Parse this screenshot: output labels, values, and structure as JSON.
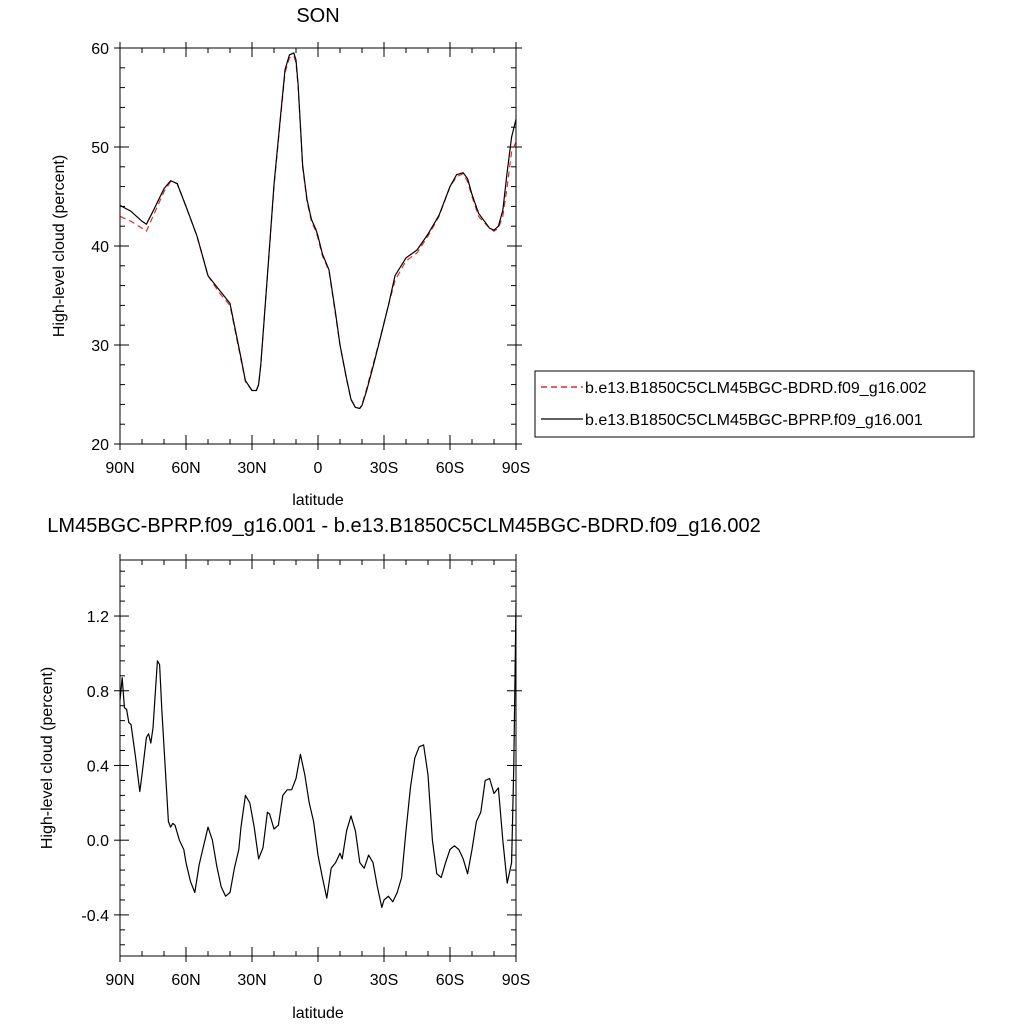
{
  "chart_data": [
    {
      "type": "line",
      "title": "SON",
      "xlabel": "latitude",
      "ylabel": "High-level cloud (percent)",
      "x_ticks": [
        "90N",
        "60N",
        "30N",
        "0",
        "30S",
        "60S",
        "90S"
      ],
      "xlim": [
        90,
        -90
      ],
      "ylim": [
        20,
        60
      ],
      "y_ticks": [
        "20",
        "30",
        "40",
        "50",
        "60"
      ],
      "grid": false,
      "legend_placement": "right",
      "series": [
        {
          "name": "b.e13.B1850C5CLM45BGC-BDRD.f09_g16.002",
          "color": "#e8262d",
          "dash": "dashed",
          "x": [
            90,
            85,
            80,
            78,
            75,
            70,
            67,
            64,
            60,
            55,
            50,
            45,
            40,
            35,
            33,
            30,
            28,
            27,
            26,
            24,
            22,
            20,
            17,
            15,
            13,
            11,
            10,
            9,
            8,
            7,
            5,
            3,
            1,
            0,
            -2,
            -5,
            -8,
            -10,
            -13,
            -15,
            -17,
            -19,
            -20,
            -22,
            -25,
            -28,
            -32,
            -35,
            -40,
            -45,
            -50,
            -55,
            -60,
            -63,
            -66,
            -68,
            -70,
            -73,
            -75,
            -78,
            -80,
            -82,
            -84,
            -86,
            -88,
            -90
          ],
          "values": [
            43.0,
            42.5,
            41.8,
            41.5,
            43.0,
            45.5,
            46.5,
            46.3,
            44.0,
            41.0,
            37.0,
            35.3,
            34.0,
            28.5,
            26.3,
            25.4,
            25.4,
            26.0,
            28.0,
            34.0,
            40.0,
            46.0,
            53.0,
            57.5,
            59.0,
            59.2,
            58.5,
            56.0,
            52.0,
            48.0,
            44.5,
            42.5,
            41.5,
            40.8,
            39.0,
            37.5,
            33.0,
            30.0,
            26.5,
            24.5,
            23.7,
            23.6,
            24.0,
            25.5,
            28.0,
            30.5,
            34.0,
            36.5,
            38.5,
            39.3,
            41.0,
            43.0,
            46.0,
            47.0,
            47.3,
            46.5,
            45.0,
            43.0,
            42.5,
            41.8,
            41.5,
            41.8,
            43.0,
            46.0,
            49.5,
            50.5
          ]
        },
        {
          "name": "b.e13.B1850C5CLM45BGC-BPRP.f09_g16.001",
          "color": "#000000",
          "dash": "solid",
          "x": [
            90,
            85,
            80,
            78,
            75,
            70,
            67,
            64,
            60,
            55,
            50,
            45,
            40,
            35,
            33,
            30,
            28,
            27,
            26,
            24,
            22,
            20,
            17,
            15,
            13,
            11,
            10,
            9,
            8,
            7,
            5,
            3,
            1,
            0,
            -2,
            -5,
            -8,
            -10,
            -13,
            -15,
            -17,
            -19,
            -20,
            -22,
            -25,
            -28,
            -32,
            -35,
            -40,
            -45,
            -50,
            -55,
            -60,
            -63,
            -66,
            -68,
            -70,
            -73,
            -75,
            -78,
            -80,
            -82,
            -84,
            -86,
            -88,
            -90
          ],
          "values": [
            44.1,
            43.5,
            42.5,
            42.2,
            43.5,
            45.8,
            46.6,
            46.3,
            44.0,
            41.0,
            37.0,
            35.6,
            34.2,
            28.7,
            26.4,
            25.4,
            25.4,
            26.0,
            28.0,
            34.0,
            40.0,
            46.2,
            53.2,
            57.8,
            59.3,
            59.5,
            58.8,
            56.2,
            52.2,
            48.2,
            44.7,
            42.7,
            41.7,
            41.0,
            39.2,
            37.6,
            33.2,
            30.0,
            26.6,
            24.5,
            23.7,
            23.6,
            23.9,
            25.3,
            27.8,
            30.4,
            34.0,
            37.0,
            38.8,
            39.6,
            41.2,
            43.1,
            46.0,
            47.2,
            47.4,
            46.8,
            45.2,
            43.3,
            42.7,
            41.8,
            41.6,
            42.0,
            43.6,
            47.5,
            51.0,
            52.8
          ]
        }
      ]
    },
    {
      "type": "line",
      "title": "LM45BGC-BPRP.f09_g16.001 - b.e13.B1850C5CLM45BGC-BDRD.f09_g16.002",
      "xlabel": "latitude",
      "ylabel": "High-level cloud (percent)",
      "x_ticks": [
        "90N",
        "60N",
        "30N",
        "0",
        "30S",
        "60S",
        "90S"
      ],
      "xlim": [
        90,
        -90
      ],
      "ylim": [
        -0.62,
        1.5
      ],
      "y_ticks": [
        "-0.4",
        "0.0",
        "0.4",
        "0.8",
        "1.2"
      ],
      "grid": false,
      "series": [
        {
          "color": "#000000",
          "dash": "solid",
          "x": [
            90,
            89,
            88,
            87,
            86,
            85,
            83,
            81,
            80,
            78,
            77,
            76,
            75,
            73,
            72,
            71,
            69,
            68,
            67,
            66,
            65,
            63,
            61,
            60,
            58,
            56,
            54,
            53,
            51,
            50,
            48,
            46,
            44,
            42,
            40,
            38,
            36,
            35,
            33,
            31,
            29,
            27,
            25,
            23,
            22,
            20,
            18,
            16,
            14,
            12,
            10,
            8,
            6,
            4,
            2,
            0,
            -2,
            -4,
            -6,
            -8,
            -10,
            -11,
            -13,
            -15,
            -17,
            -19,
            -21,
            -23,
            -25,
            -27,
            -29,
            -30,
            -32,
            -34,
            -36,
            -38,
            -40,
            -42,
            -44,
            -46,
            -48,
            -50,
            -52,
            -54,
            -56,
            -58,
            -60,
            -62,
            -64,
            -66,
            -68,
            -70,
            -72,
            -74,
            -76,
            -78,
            -80,
            -82,
            -84,
            -86,
            -88,
            -89,
            -90
          ],
          "values": [
            0.75,
            0.87,
            0.71,
            0.7,
            0.63,
            0.62,
            0.45,
            0.26,
            0.35,
            0.55,
            0.57,
            0.52,
            0.6,
            0.96,
            0.94,
            0.7,
            0.3,
            0.1,
            0.07,
            0.09,
            0.08,
            0.0,
            -0.05,
            -0.12,
            -0.22,
            -0.28,
            -0.13,
            -0.08,
            0.02,
            0.07,
            0.0,
            -0.14,
            -0.25,
            -0.3,
            -0.28,
            -0.15,
            -0.05,
            0.07,
            0.24,
            0.2,
            0.07,
            -0.1,
            -0.04,
            0.15,
            0.14,
            0.06,
            0.08,
            0.24,
            0.27,
            0.27,
            0.33,
            0.46,
            0.35,
            0.2,
            0.1,
            -0.08,
            -0.2,
            -0.31,
            -0.15,
            -0.12,
            -0.07,
            -0.1,
            0.05,
            0.13,
            0.05,
            -0.12,
            -0.15,
            -0.08,
            -0.12,
            -0.25,
            -0.36,
            -0.32,
            -0.3,
            -0.33,
            -0.28,
            -0.2,
            0.05,
            0.28,
            0.44,
            0.5,
            0.51,
            0.35,
            0.0,
            -0.18,
            -0.2,
            -0.12,
            -0.05,
            -0.03,
            -0.05,
            -0.1,
            -0.18,
            -0.05,
            0.1,
            0.15,
            0.32,
            0.33,
            0.25,
            0.28,
            0.0,
            -0.23,
            -0.12,
            0.4,
            1.27
          ]
        }
      ]
    }
  ]
}
